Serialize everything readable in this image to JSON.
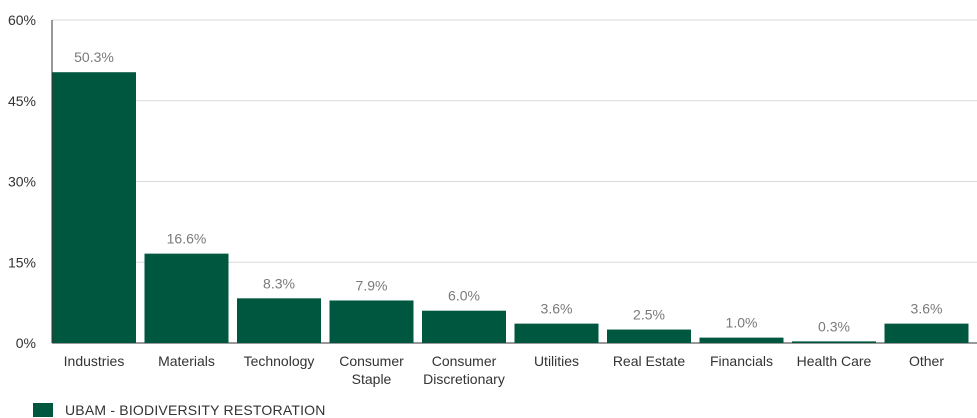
{
  "chart_data": {
    "type": "bar",
    "categories": [
      "Industries",
      "Materials",
      "Technology",
      "Consumer Staple",
      "Consumer Discretionary",
      "Utilities",
      "Real Estate",
      "Financials",
      "Health Care",
      "Other"
    ],
    "series": [
      {
        "name": "UBAM - BIODIVERSITY RESTORATION",
        "values": [
          50.3,
          16.6,
          8.3,
          7.9,
          6.0,
          3.6,
          2.5,
          1.0,
          0.3,
          3.6
        ],
        "labels": [
          "50.3%",
          "16.6%",
          "8.3%",
          "7.9%",
          "6.0%",
          "3.6%",
          "2.5%",
          "1.0%",
          "0.3%",
          "3.6%"
        ],
        "color": "#00573f"
      }
    ],
    "y_ticks": [
      {
        "value": 0,
        "label": "0%"
      },
      {
        "value": 15,
        "label": "15%"
      },
      {
        "value": 30,
        "label": "30%"
      },
      {
        "value": 45,
        "label": "45%"
      },
      {
        "value": 60,
        "label": "60%"
      }
    ],
    "ylim": [
      0,
      60
    ],
    "grid": true,
    "legend_position": "bottom-left",
    "title": "",
    "xlabel": "",
    "ylabel": ""
  },
  "colors": {
    "bar": "#00573f",
    "grid": "#d9d9d9",
    "axis": "#333333"
  }
}
